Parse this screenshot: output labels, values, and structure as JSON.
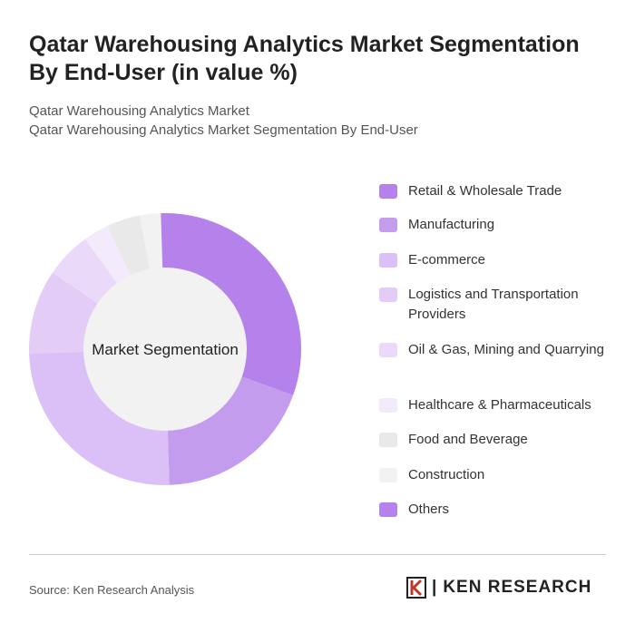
{
  "title": "Qatar Warehousing Analytics Market Segmentation By End-User (in value %)",
  "subtitle1": "Qatar Warehousing Analytics Market",
  "subtitle2": "Qatar Warehousing Analytics Market Segmentation By End-User",
  "source": "Source: Ken Research Analysis",
  "logo_text": "KEN RESEARCH",
  "chart_data": {
    "type": "pie",
    "center_label": "Market Segmentation",
    "legend_position": "right",
    "categories": [
      "Retail & Wholesale Trade",
      "Manufacturing",
      "E-commerce",
      "Logistics and Transportation Providers",
      "Oil & Gas, Mining and Quarrying",
      "Healthcare & Pharmaceuticals",
      "Food and Beverage",
      "Construction",
      "Others"
    ],
    "values": [
      30.5,
      19,
      25,
      10,
      5.5,
      3,
      4,
      2.5,
      0.5
    ],
    "colors": [
      "#b482ea",
      "#c49cee",
      "#dac0f6",
      "#e3cdf7",
      "#ead9f9",
      "#f3ebfc",
      "#e9e9e9",
      "#f2f2f2",
      "#b482ea"
    ]
  }
}
